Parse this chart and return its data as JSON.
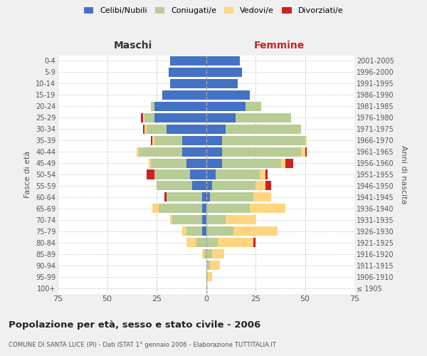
{
  "age_groups": [
    "100+",
    "95-99",
    "90-94",
    "85-89",
    "80-84",
    "75-79",
    "70-74",
    "65-69",
    "60-64",
    "55-59",
    "50-54",
    "45-49",
    "40-44",
    "35-39",
    "30-34",
    "25-29",
    "20-24",
    "15-19",
    "10-14",
    "5-9",
    "0-4"
  ],
  "birth_years": [
    "≤ 1905",
    "1906-1910",
    "1911-1915",
    "1916-1920",
    "1921-1925",
    "1926-1930",
    "1931-1935",
    "1936-1940",
    "1941-1945",
    "1946-1950",
    "1951-1955",
    "1956-1960",
    "1961-1965",
    "1966-1970",
    "1971-1975",
    "1976-1980",
    "1981-1985",
    "1986-1990",
    "1991-1995",
    "1996-2000",
    "2001-2005"
  ],
  "maschi": {
    "celibi": [
      0,
      0,
      0,
      0,
      0,
      2,
      2,
      2,
      2,
      7,
      8,
      10,
      12,
      12,
      20,
      26,
      26,
      22,
      18,
      19,
      18
    ],
    "coniugati": [
      0,
      0,
      0,
      1,
      5,
      8,
      15,
      22,
      18,
      18,
      18,
      18,
      22,
      14,
      10,
      5,
      2,
      0,
      0,
      0,
      0
    ],
    "vedovi": [
      0,
      0,
      0,
      1,
      5,
      2,
      1,
      3,
      0,
      0,
      0,
      1,
      1,
      1,
      1,
      1,
      0,
      0,
      0,
      0,
      0
    ],
    "divorziati": [
      0,
      0,
      0,
      0,
      0,
      0,
      0,
      0,
      1,
      0,
      4,
      0,
      0,
      1,
      1,
      1,
      0,
      0,
      0,
      0,
      0
    ]
  },
  "femmine": {
    "nubili": [
      0,
      0,
      0,
      0,
      0,
      0,
      0,
      0,
      2,
      3,
      5,
      8,
      8,
      8,
      10,
      15,
      20,
      22,
      16,
      18,
      17
    ],
    "coniugate": [
      0,
      1,
      2,
      3,
      6,
      14,
      10,
      22,
      22,
      22,
      22,
      30,
      40,
      42,
      38,
      28,
      8,
      0,
      0,
      0,
      0
    ],
    "vedove": [
      1,
      2,
      5,
      6,
      18,
      22,
      15,
      18,
      9,
      5,
      3,
      2,
      2,
      1,
      0,
      0,
      0,
      0,
      0,
      0,
      0
    ],
    "divorziate": [
      0,
      0,
      0,
      0,
      1,
      0,
      0,
      0,
      0,
      3,
      1,
      4,
      1,
      0,
      0,
      0,
      0,
      0,
      0,
      0,
      0
    ]
  },
  "colors": {
    "celibi_nubili": "#4472C4",
    "coniugati": "#B8CC96",
    "vedovi": "#FFD580",
    "divorziati": "#CC2222"
  },
  "xlim": 75,
  "title": "Popolazione per età, sesso e stato civile - 2006",
  "subtitle": "COMUNE DI SANTA LUCE (PI) - Dati ISTAT 1° gennaio 2006 - Elaborazione TUTTITALIA.IT",
  "ylabel_left": "Fasce di età",
  "ylabel_right": "Anni di nascita",
  "xlabel_maschi": "Maschi",
  "xlabel_femmine": "Femmine",
  "bg_color": "#f0f0f0",
  "plot_bg": "#ffffff"
}
